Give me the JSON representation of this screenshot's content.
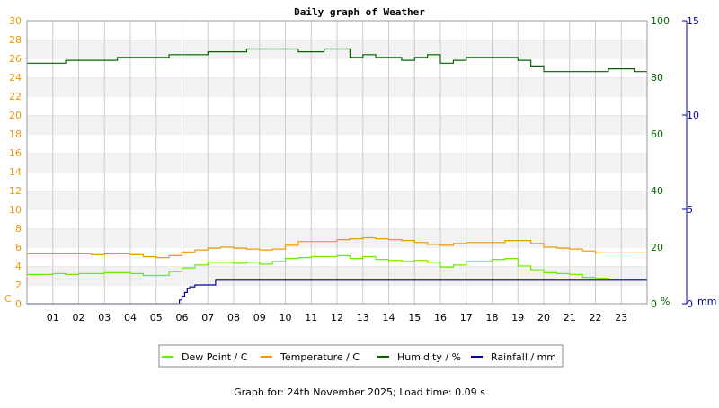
{
  "colors": {
    "dew_point": "#66ee00",
    "temperature": "#ee9900",
    "humidity": "#006600",
    "rainfall": "#000099",
    "left_axis": "#ee9900",
    "humidity_axis": "#006600",
    "rain_axis": "#000099",
    "band": "#f2f2f2",
    "grid": "#cccccc"
  },
  "footer": {
    "text": "Graph for: 24th November 2025; Load time: 0.09 s"
  },
  "chart_data": {
    "type": "line",
    "title": "Daily graph of Weather",
    "grid": true,
    "legend_position": "bottom",
    "x_axis": {
      "range": [
        0,
        24
      ],
      "tick_labels": [
        "01",
        "02",
        "03",
        "04",
        "05",
        "06",
        "07",
        "08",
        "09",
        "10",
        "11",
        "12",
        "13",
        "14",
        "15",
        "16",
        "17",
        "18",
        "19",
        "20",
        "21",
        "22",
        "23"
      ]
    },
    "y_axes": {
      "left": {
        "unit": "C",
        "range": [
          0,
          30
        ],
        "tick_labels": [
          "0",
          "2",
          "4",
          "6",
          "8",
          "10",
          "12",
          "14",
          "16",
          "18",
          "20",
          "22",
          "24",
          "26",
          "28",
          "30"
        ]
      },
      "humidity": {
        "unit": "%",
        "range": [
          0,
          100
        ],
        "tick_labels": [
          "0",
          "20",
          "40",
          "60",
          "80",
          "100"
        ]
      },
      "rain": {
        "unit": "mm",
        "range": [
          0,
          15
        ],
        "tick_labels": [
          "0",
          "5",
          "10",
          "15"
        ]
      }
    },
    "series": [
      {
        "name": "Dew Point / C",
        "axis": "left",
        "x": [
          0,
          0.5,
          1,
          1.5,
          2,
          2.5,
          3,
          3.5,
          4,
          4.5,
          5,
          5.5,
          6,
          6.5,
          7,
          7.5,
          8,
          8.5,
          9,
          9.5,
          10,
          10.5,
          11,
          11.5,
          12,
          12.5,
          13,
          13.5,
          14,
          14.5,
          15,
          15.5,
          16,
          16.5,
          17,
          17.5,
          18,
          18.5,
          19,
          19.5,
          20,
          20.5,
          21,
          21.5,
          22,
          22.5,
          23,
          23.5,
          24
        ],
        "values": [
          3.1,
          3.1,
          3.2,
          3.1,
          3.2,
          3.2,
          3.3,
          3.3,
          3.2,
          3.0,
          3.0,
          3.4,
          3.8,
          4.1,
          4.4,
          4.4,
          4.3,
          4.4,
          4.2,
          4.5,
          4.8,
          4.9,
          5.0,
          5.0,
          5.1,
          4.8,
          5.0,
          4.7,
          4.6,
          4.5,
          4.6,
          4.4,
          3.9,
          4.1,
          4.5,
          4.5,
          4.7,
          4.8,
          4.0,
          3.6,
          3.3,
          3.2,
          3.1,
          2.8,
          2.7,
          2.6,
          2.6,
          2.6,
          2.6
        ]
      },
      {
        "name": "Temperature / C",
        "axis": "left",
        "x": [
          0,
          0.5,
          1,
          1.5,
          2,
          2.5,
          3,
          3.5,
          4,
          4.5,
          5,
          5.5,
          6,
          6.5,
          7,
          7.5,
          8,
          8.5,
          9,
          9.5,
          10,
          10.5,
          11,
          11.5,
          12,
          12.5,
          13,
          13.5,
          14,
          14.5,
          15,
          15.5,
          16,
          16.5,
          17,
          17.5,
          18,
          18.5,
          19,
          19.5,
          20,
          20.5,
          21,
          21.5,
          22,
          22.5,
          23,
          23.5,
          24
        ],
        "values": [
          5.3,
          5.3,
          5.3,
          5.3,
          5.3,
          5.2,
          5.3,
          5.3,
          5.2,
          5.0,
          4.9,
          5.1,
          5.5,
          5.7,
          5.9,
          6.0,
          5.9,
          5.8,
          5.7,
          5.8,
          6.2,
          6.6,
          6.6,
          6.6,
          6.8,
          6.9,
          7.0,
          6.9,
          6.8,
          6.7,
          6.5,
          6.3,
          6.2,
          6.4,
          6.5,
          6.5,
          6.5,
          6.7,
          6.7,
          6.4,
          6.0,
          5.9,
          5.8,
          5.6,
          5.4,
          5.4,
          5.4,
          5.4,
          5.3
        ]
      },
      {
        "name": "Humidity / %",
        "axis": "humidity",
        "x": [
          0,
          0.5,
          1,
          1.5,
          2,
          2.5,
          3,
          3.5,
          4,
          4.5,
          5,
          5.5,
          6,
          6.5,
          7,
          7.5,
          8,
          8.5,
          9,
          9.5,
          10,
          10.5,
          11,
          11.5,
          12,
          12.5,
          13,
          13.5,
          14,
          14.5,
          15,
          15.5,
          16,
          16.5,
          17,
          17.5,
          18,
          18.5,
          19,
          19.5,
          20,
          20.5,
          21,
          21.5,
          22,
          22.5,
          23,
          23.5,
          24
        ],
        "values": [
          85,
          85,
          85,
          86,
          86,
          86,
          86,
          87,
          87,
          87,
          87,
          88,
          88,
          88,
          89,
          89,
          89,
          90,
          90,
          90,
          90,
          89,
          89,
          90,
          90,
          87,
          88,
          87,
          87,
          86,
          87,
          88,
          85,
          86,
          87,
          87,
          87,
          87,
          86,
          84,
          82,
          82,
          82,
          82,
          82,
          83,
          83,
          82,
          82
        ]
      },
      {
        "name": "Rainfall / mm",
        "axis": "rain",
        "x": [
          0,
          1,
          2,
          3,
          4,
          5,
          5.7,
          5.9,
          6.0,
          6.1,
          6.2,
          6.3,
          6.5,
          7.0,
          7.2,
          7.3,
          8,
          9,
          10,
          11,
          12,
          13,
          14,
          15,
          16,
          17,
          18,
          19,
          20,
          21,
          22,
          23,
          24
        ],
        "values": [
          0,
          0,
          0,
          0,
          0,
          0,
          0,
          0.2,
          0.4,
          0.6,
          0.8,
          0.9,
          1.0,
          1.0,
          1.0,
          1.25,
          1.25,
          1.25,
          1.25,
          1.25,
          1.25,
          1.25,
          1.25,
          1.25,
          1.25,
          1.25,
          1.25,
          1.25,
          1.25,
          1.25,
          1.25,
          1.25,
          1.25
        ]
      }
    ]
  }
}
